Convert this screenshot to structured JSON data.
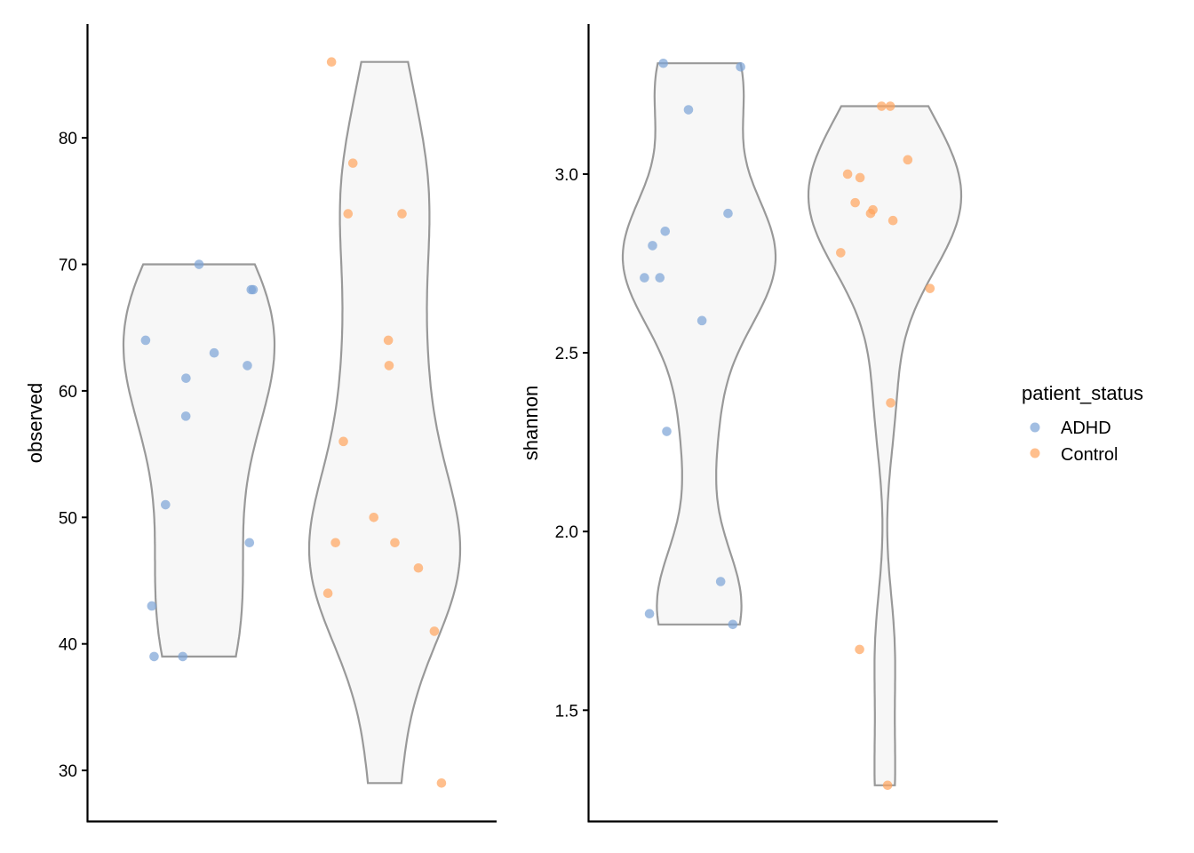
{
  "chart_data": [
    {
      "type": "violin",
      "ylabel": "observed",
      "xlabel": "",
      "ylim": [
        26,
        89
      ],
      "y_ticks": [
        "30",
        "40",
        "50",
        "60",
        "70",
        "80"
      ],
      "groups": [
        {
          "name": "ADHD",
          "color": "#7BA3D6",
          "points": [
            62,
            68,
            64,
            58,
            48,
            39,
            39,
            70,
            63,
            51,
            43,
            68,
            61
          ]
        },
        {
          "name": "Control",
          "color": "#FFA45C",
          "points": [
            56,
            46,
            74,
            41,
            64,
            48,
            86,
            62,
            78,
            48,
            74,
            44,
            50,
            29
          ]
        }
      ]
    },
    {
      "type": "violin",
      "ylabel": "shannon",
      "xlabel": "",
      "ylim": [
        1.19,
        3.42
      ],
      "y_ticks": [
        "1.5",
        "2.0",
        "2.5",
        "3.0"
      ],
      "groups": [
        {
          "name": "ADHD",
          "color": "#7BA3D6",
          "points": [
            2.8,
            3.3,
            2.89,
            2.71,
            2.28,
            1.77,
            1.74,
            2.84,
            2.59,
            1.86,
            3.31,
            3.18,
            2.71
          ]
        },
        {
          "name": "Control",
          "color": "#FFA45C",
          "points": [
            2.9,
            3.04,
            2.99,
            2.87,
            2.68,
            3.19,
            3.19,
            2.92,
            2.78,
            2.36,
            1.67,
            1.29,
            3.0,
            2.89
          ]
        }
      ]
    }
  ],
  "legend": {
    "title": "patient_status",
    "items": [
      {
        "label": "ADHD",
        "color": "#7BA3D6"
      },
      {
        "label": "Control",
        "color": "#FFA45C"
      }
    ]
  },
  "style": {
    "violin_fill": "#F7F7F7",
    "violin_stroke": "#999999",
    "axis_color": "#000000"
  }
}
